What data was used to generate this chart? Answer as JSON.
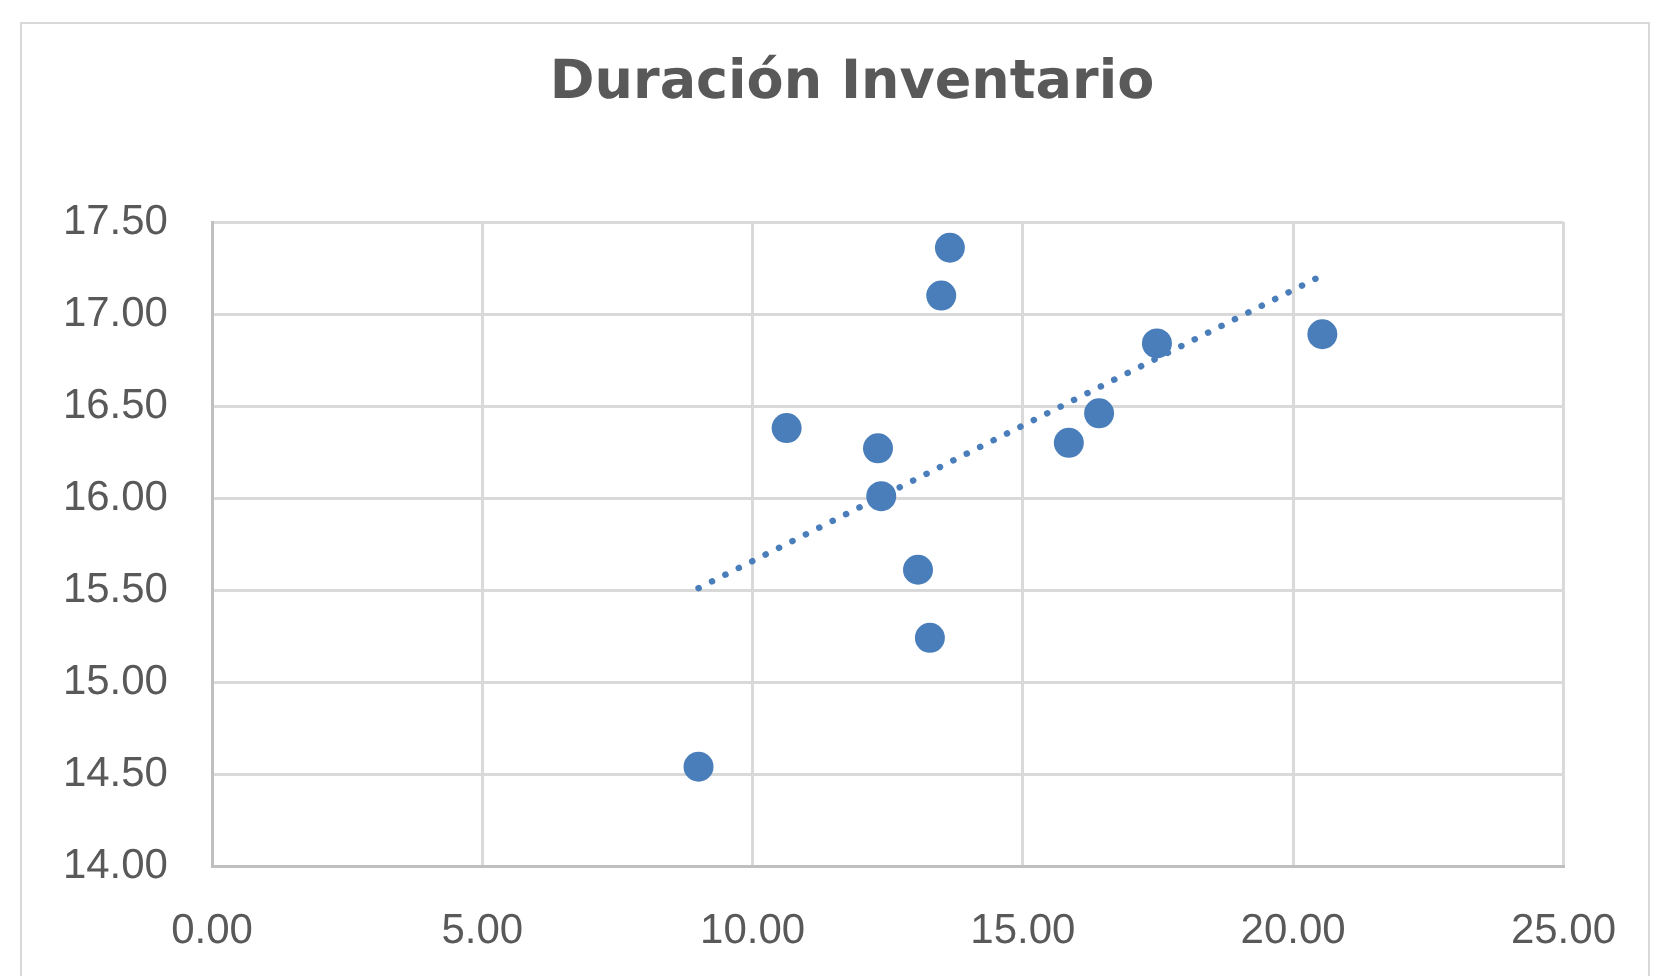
{
  "chart_data": {
    "type": "scatter",
    "title": "Duración Inventario",
    "series": [
      {
        "color": "#4a7ebb",
        "x": [
          9.0,
          10.63,
          12.32,
          12.38,
          13.06,
          13.28,
          13.49,
          13.65,
          15.85,
          16.41,
          17.48,
          20.54
        ],
        "values": [
          14.54,
          16.38,
          16.27,
          16.01,
          15.61,
          15.24,
          17.1,
          17.36,
          16.3,
          16.46,
          16.84,
          16.89
        ]
      },
      {
        "type": "line",
        "color": "#4a7ebb",
        "x": [
          9.0,
          20.54
        ],
        "values": [
          15.51,
          17.21
        ],
        "line_style": "dotted",
        "marker": "none"
      }
    ],
    "xlim": [
      0,
      25
    ],
    "xticks": [
      {
        "value": 0,
        "label": "0.00"
      },
      {
        "value": 5,
        "label": "5.00"
      },
      {
        "value": 10,
        "label": "10.00"
      },
      {
        "value": 15,
        "label": "15.00"
      },
      {
        "value": 20,
        "label": "20.00"
      },
      {
        "value": 25,
        "label": "25.00"
      }
    ],
    "ylim": [
      14,
      17.5
    ],
    "yticks": [
      {
        "value": 14,
        "label": "14.00"
      },
      {
        "value": 14.5,
        "label": "14.50"
      },
      {
        "value": 15,
        "label": "15.00"
      },
      {
        "value": 15.5,
        "label": "15.50"
      },
      {
        "value": 16,
        "label": "16.00"
      },
      {
        "value": 16.5,
        "label": "16.50"
      },
      {
        "value": 17,
        "label": "17.00"
      },
      {
        "value": 17.5,
        "label": "17.50"
      }
    ],
    "grid": true,
    "marker": "circle"
  }
}
